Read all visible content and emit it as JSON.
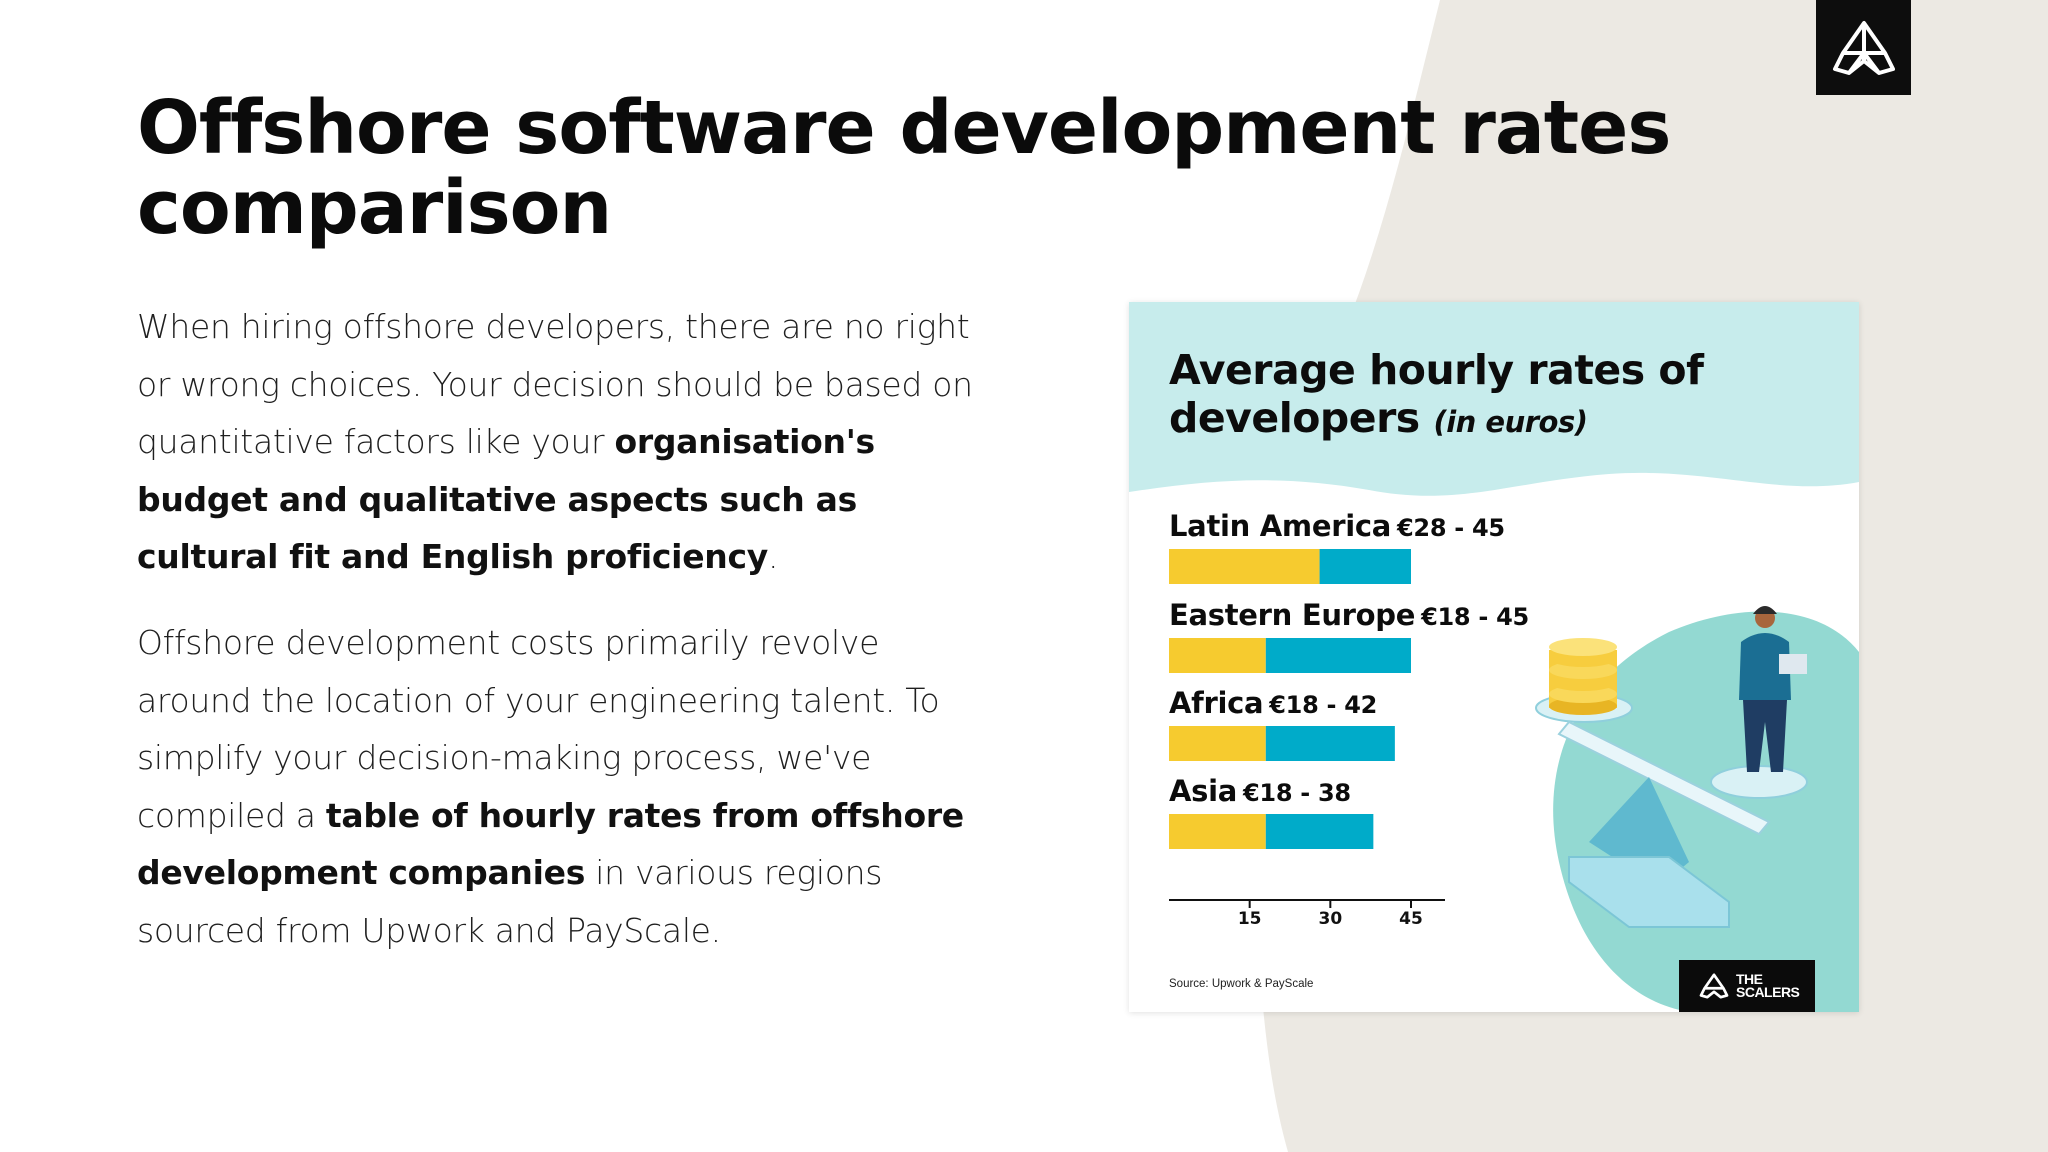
{
  "title": "Offshore software development rates comparison",
  "paragraph1": {
    "intro": "When hiring offshore developers, there are no right or wrong choices. Your decision should be based on quantitative factors like your ",
    "bold": "organisation's budget and qualitative aspects such as cultural fit and English proficiency",
    "end": "."
  },
  "paragraph2": {
    "intro": "Offshore development costs primarily revolve around the location of your engineering talent. To simplify your decision-making process, we've compiled a ",
    "bold": "table of hourly rates from offshore development companies",
    "end": " in various regions sourced from Upwork and PayScale."
  },
  "infographic": {
    "brand_line1": "THE",
    "brand_line2": "SCALERS",
    "source": "Source: Upwork & PayScale"
  },
  "chart_data": {
    "type": "bar",
    "title": "Average hourly rates of developers",
    "subtitle": "(in euros)",
    "categories": [
      "Latin America",
      "Eastern Europe",
      "Africa",
      "Asia"
    ],
    "range_labels": [
      "€28 - 45",
      "€18 - 45",
      "€18 - 42",
      "€18 - 38"
    ],
    "min_values": [
      28,
      18,
      18,
      18
    ],
    "max_values": [
      45,
      45,
      42,
      38
    ],
    "x_ticks": [
      15,
      30,
      45
    ],
    "xlim": [
      0,
      45
    ],
    "colors": {
      "min_segment": "#f6cb2f",
      "range_segment": "#00abc9",
      "header_bg": "#c7ecec",
      "hill": "#93d9d2"
    }
  },
  "colors": {
    "background_shape": "#ece9e3"
  }
}
